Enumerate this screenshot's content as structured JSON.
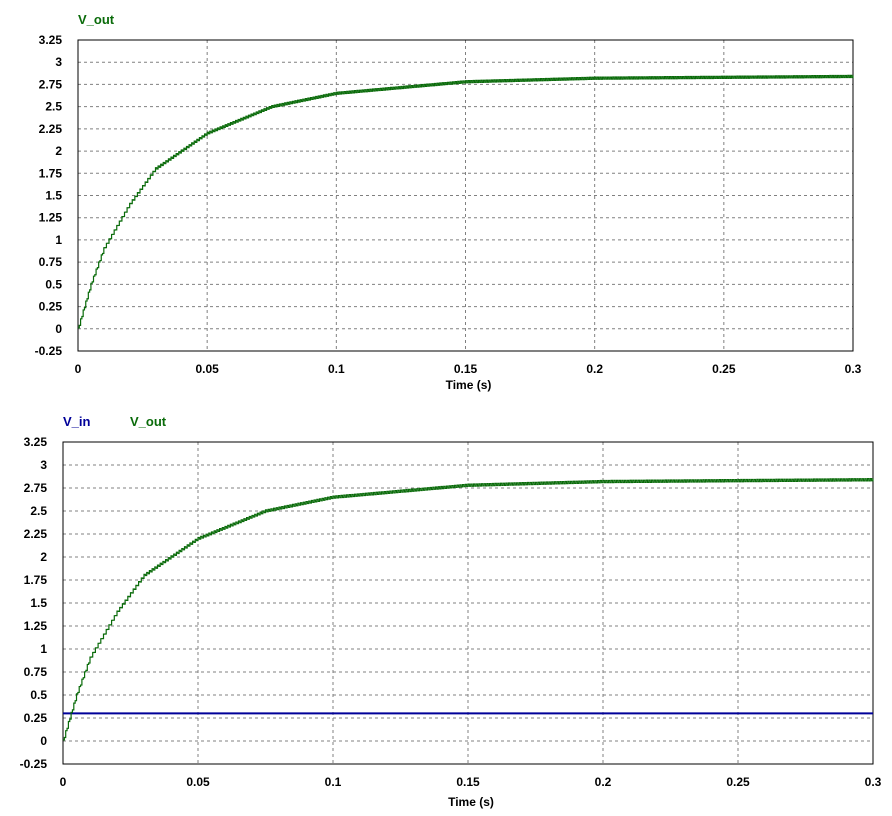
{
  "colors": {
    "v_out": "#0a6b0a",
    "v_in": "#000099",
    "grid": "#808080",
    "axis": "#000000"
  },
  "chart_data": [
    {
      "type": "line",
      "title": "",
      "xlabel": "Time (s)",
      "ylabel": "",
      "xlim": [
        0,
        0.3
      ],
      "ylim": [
        -0.25,
        3.25
      ],
      "xticks": [
        "0",
        "0.05",
        "0.1",
        "0.15",
        "0.2",
        "0.25",
        "0.3"
      ],
      "yticks": [
        "-0.25",
        "0",
        "0.25",
        "0.5",
        "0.75",
        "1",
        "1.25",
        "1.5",
        "1.75",
        "2",
        "2.25",
        "2.5",
        "2.75",
        "3",
        "3.25"
      ],
      "grid": true,
      "legend": [
        "V_out"
      ],
      "series": [
        {
          "name": "V_out",
          "color": "#0a6b0a",
          "x": [
            0,
            0.005,
            0.01,
            0.02,
            0.03,
            0.05,
            0.075,
            0.1,
            0.15,
            0.2,
            0.25,
            0.3
          ],
          "y": [
            0,
            0.5,
            0.9,
            1.4,
            1.8,
            2.2,
            2.5,
            2.65,
            2.78,
            2.82,
            2.83,
            2.84
          ]
        }
      ]
    },
    {
      "type": "line",
      "title": "",
      "xlabel": "Time (s)",
      "ylabel": "",
      "xlim": [
        0,
        0.3
      ],
      "ylim": [
        -0.25,
        3.25
      ],
      "xticks": [
        "0",
        "0.05",
        "0.1",
        "0.15",
        "0.2",
        "0.25",
        "0.3"
      ],
      "yticks": [
        "-0.25",
        "0",
        "0.25",
        "0.5",
        "0.75",
        "1",
        "1.25",
        "1.5",
        "1.75",
        "2",
        "2.25",
        "2.5",
        "2.75",
        "3",
        "3.25"
      ],
      "grid": true,
      "legend": [
        "V_in",
        "V_out"
      ],
      "series": [
        {
          "name": "V_in",
          "color": "#000099",
          "x": [
            0,
            0.3
          ],
          "y": [
            0.3,
            0.3
          ]
        },
        {
          "name": "V_out",
          "color": "#0a6b0a",
          "x": [
            0,
            0.005,
            0.01,
            0.02,
            0.03,
            0.05,
            0.075,
            0.1,
            0.15,
            0.2,
            0.25,
            0.3
          ],
          "y": [
            0,
            0.5,
            0.9,
            1.4,
            1.8,
            2.2,
            2.5,
            2.65,
            2.78,
            2.82,
            2.83,
            2.84
          ]
        }
      ]
    }
  ]
}
